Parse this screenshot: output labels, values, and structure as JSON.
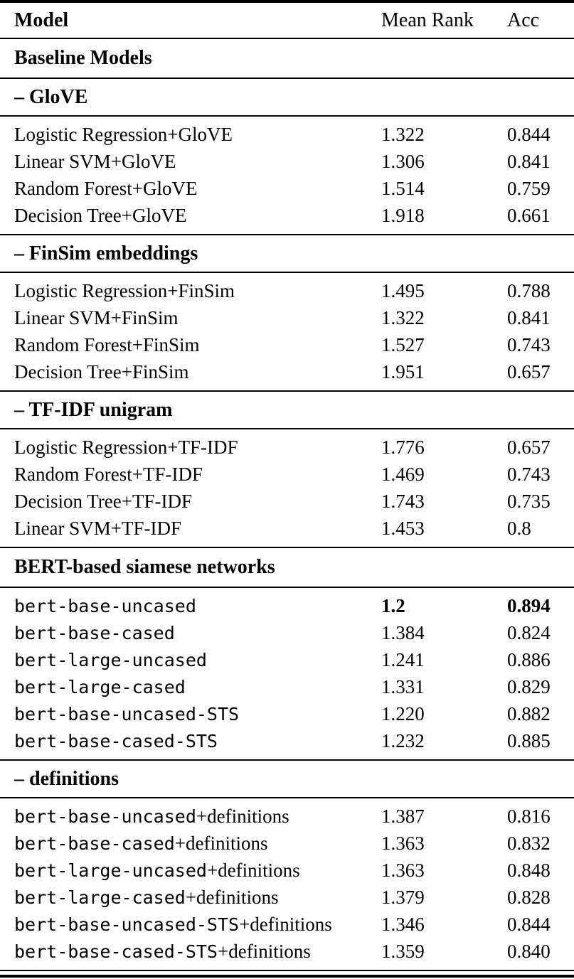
{
  "table": {
    "columns": {
      "model": "Model",
      "mean_rank": "Mean Rank",
      "acc": "Acc"
    },
    "sections": [
      {
        "title": "Baseline Models",
        "style": "group",
        "rows": []
      },
      {
        "title": "– GloVE",
        "style": "sub",
        "rows": [
          {
            "code": "",
            "text": "Logistic Regression+GloVE",
            "mean_rank": "1.322",
            "acc": "0.844",
            "bold": false
          },
          {
            "code": "",
            "text": "Linear SVM+GloVE",
            "mean_rank": "1.306",
            "acc": "0.841",
            "bold": false
          },
          {
            "code": "",
            "text": "Random Forest+GloVE",
            "mean_rank": "1.514",
            "acc": "0.759",
            "bold": false
          },
          {
            "code": "",
            "text": "Decision Tree+GloVE",
            "mean_rank": "1.918",
            "acc": "0.661",
            "bold": false
          }
        ]
      },
      {
        "title": "– FinSim embeddings",
        "style": "sub",
        "rows": [
          {
            "code": "",
            "text": "Logistic Regression+FinSim",
            "mean_rank": "1.495",
            "acc": "0.788",
            "bold": false
          },
          {
            "code": "",
            "text": "Linear SVM+FinSim",
            "mean_rank": "1.322",
            "acc": "0.841",
            "bold": false
          },
          {
            "code": "",
            "text": "Random Forest+FinSim",
            "mean_rank": "1.527",
            "acc": "0.743",
            "bold": false
          },
          {
            "code": "",
            "text": "Decision Tree+FinSim",
            "mean_rank": "1.951",
            "acc": "0.657",
            "bold": false
          }
        ]
      },
      {
        "title": "– TF-IDF unigram",
        "style": "sub",
        "rows": [
          {
            "code": "",
            "text": "Logistic Regression+TF-IDF",
            "mean_rank": "1.776",
            "acc": "0.657",
            "bold": false
          },
          {
            "code": "",
            "text": "Random Forest+TF-IDF",
            "mean_rank": "1.469",
            "acc": "0.743",
            "bold": false
          },
          {
            "code": "",
            "text": "Decision Tree+TF-IDF",
            "mean_rank": "1.743",
            "acc": "0.735",
            "bold": false
          },
          {
            "code": "",
            "text": "Linear SVM+TF-IDF",
            "mean_rank": "1.453",
            "acc": "0.8",
            "bold": false
          }
        ]
      },
      {
        "title": "BERT-based siamese networks",
        "style": "group",
        "rows": [
          {
            "code": "bert-base-uncased",
            "text": "",
            "mean_rank": "1.2",
            "acc": "0.894",
            "bold": true
          },
          {
            "code": "bert-base-cased",
            "text": "",
            "mean_rank": "1.384",
            "acc": "0.824",
            "bold": false
          },
          {
            "code": "bert-large-uncased",
            "text": "",
            "mean_rank": "1.241",
            "acc": "0.886",
            "bold": false
          },
          {
            "code": "bert-large-cased",
            "text": "",
            "mean_rank": "1.331",
            "acc": "0.829",
            "bold": false
          },
          {
            "code": "bert-base-uncased-STS",
            "text": "",
            "mean_rank": "1.220",
            "acc": "0.882",
            "bold": false
          },
          {
            "code": "bert-base-cased-STS",
            "text": "",
            "mean_rank": "1.232",
            "acc": "0.885",
            "bold": false
          }
        ]
      },
      {
        "title": "– definitions",
        "style": "sub",
        "rows": [
          {
            "code": "bert-base-uncased",
            "text": "+definitions",
            "mean_rank": "1.387",
            "acc": "0.816",
            "bold": false
          },
          {
            "code": "bert-base-cased",
            "text": "+definitions",
            "mean_rank": "1.363",
            "acc": "0.832",
            "bold": false
          },
          {
            "code": "bert-large-uncased",
            "text": "+definitions",
            "mean_rank": "1.363",
            "acc": "0.848",
            "bold": false
          },
          {
            "code": "bert-large-cased",
            "text": "+definitions",
            "mean_rank": "1.379",
            "acc": "0.828",
            "bold": false
          },
          {
            "code": "bert-base-uncased-STS",
            "text": "+definitions",
            "mean_rank": "1.346",
            "acc": "0.844",
            "bold": false
          },
          {
            "code": "bert-base-cased-STS",
            "text": "+definitions",
            "mean_rank": "1.359",
            "acc": "0.840",
            "bold": false
          }
        ]
      }
    ]
  }
}
